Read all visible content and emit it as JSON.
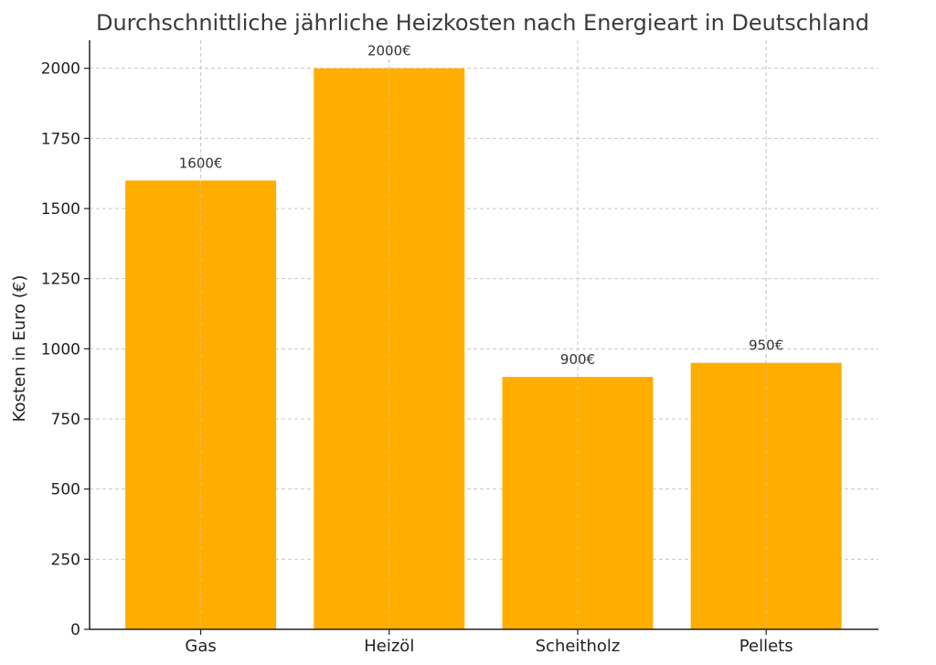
{
  "chart_data": {
    "type": "bar",
    "title": "Durchschnittliche jährliche Heizkosten nach Energieart in Deutschland",
    "xlabel": "",
    "ylabel": "Kosten in Euro (€)",
    "categories": [
      "Gas",
      "Heizöl",
      "Scheitholz",
      "Pellets"
    ],
    "values": [
      1600,
      2000,
      900,
      950
    ],
    "value_labels": [
      "1600€",
      "2000€",
      "900€",
      "950€"
    ],
    "ylim": [
      0,
      2100
    ],
    "yticks": [
      0,
      250,
      500,
      750,
      1000,
      1250,
      1500,
      1750,
      2000
    ],
    "grid": true,
    "bar_color": "#FFAE00"
  }
}
